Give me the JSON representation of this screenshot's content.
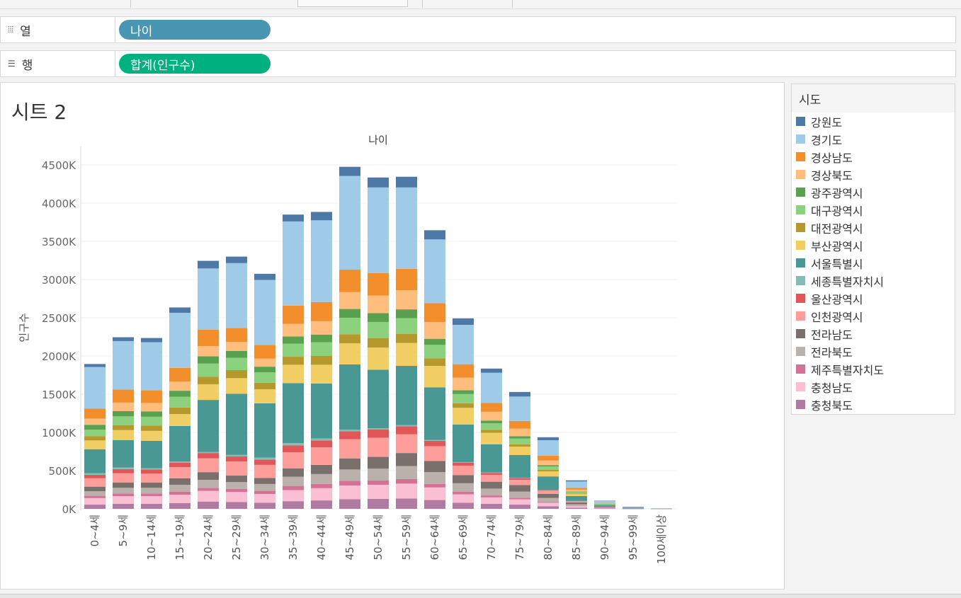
{
  "shelves": {
    "columns": {
      "label": "열",
      "icon": "⦙⦙⦙",
      "pill": "나이",
      "pill_color": "#4996b2"
    },
    "rows": {
      "label": "행",
      "icon": "☰",
      "pill": "합계(인구수)",
      "pill_color": "#00b180"
    }
  },
  "sheet": {
    "title": "시트 2"
  },
  "legend": {
    "title": "시도",
    "items": [
      {
        "name": "강원도",
        "color": "#4e79a7"
      },
      {
        "name": "경기도",
        "color": "#a0cbe8"
      },
      {
        "name": "경상남도",
        "color": "#f28e2b"
      },
      {
        "name": "경상북도",
        "color": "#ffbe7d"
      },
      {
        "name": "광주광역시",
        "color": "#59a14f"
      },
      {
        "name": "대구광역시",
        "color": "#8cd17d"
      },
      {
        "name": "대전광역시",
        "color": "#b6992d"
      },
      {
        "name": "부산광역시",
        "color": "#f1ce63"
      },
      {
        "name": "서울특별시",
        "color": "#499894"
      },
      {
        "name": "세종특별자치시",
        "color": "#86bcb6"
      },
      {
        "name": "울산광역시",
        "color": "#e15759"
      },
      {
        "name": "인천광역시",
        "color": "#ff9d9a"
      },
      {
        "name": "전라남도",
        "color": "#79706e"
      },
      {
        "name": "전라북도",
        "color": "#bab0ac"
      },
      {
        "name": "제주특별자치도",
        "color": "#d37295"
      },
      {
        "name": "충청남도",
        "color": "#fabfd2"
      },
      {
        "name": "충청북도",
        "color": "#b07aa1"
      }
    ]
  },
  "chart_data": {
    "type": "bar",
    "stacked": true,
    "title": "나이",
    "xlabel": "",
    "ylabel": "인구수",
    "ylim": [
      0,
      4700000
    ],
    "yticks": [
      0,
      500000,
      1000000,
      1500000,
      2000000,
      2500000,
      3000000,
      3500000,
      4000000,
      4500000
    ],
    "ytick_labels": [
      "0K",
      "500K",
      "1000K",
      "1500K",
      "2000K",
      "2500K",
      "3000K",
      "3500K",
      "4000K",
      "4500K"
    ],
    "categories": [
      "0~4세",
      "5~9세",
      "10~14세",
      "15~19세",
      "20~24세",
      "25~29세",
      "30~34세",
      "35~39세",
      "40~44세",
      "45~49세",
      "50~54세",
      "55~59세",
      "60~64세",
      "65~69세",
      "70~74세",
      "75~79세",
      "80~84세",
      "85~89세",
      "90~94세",
      "95~99세",
      "100세이상"
    ],
    "series": [
      {
        "name": "충청북도",
        "values": [
          55000,
          65000,
          65000,
          75000,
          95000,
          90000,
          80000,
          100000,
          110000,
          125000,
          130000,
          135000,
          115000,
          80000,
          65000,
          55000,
          35000,
          15000,
          5000,
          1500,
          200
        ]
      },
      {
        "name": "충청남도",
        "values": [
          85000,
          100000,
          100000,
          110000,
          140000,
          130000,
          115000,
          145000,
          160000,
          180000,
          185000,
          195000,
          165000,
          110000,
          85000,
          70000,
          45000,
          20000,
          6000,
          2000,
          300
        ]
      },
      {
        "name": "제주특별자치도",
        "values": [
          30000,
          35000,
          35000,
          40000,
          40000,
          40000,
          40000,
          55000,
          55000,
          60000,
          55000,
          60000,
          45000,
          35000,
          25000,
          20000,
          12000,
          5000,
          2000,
          500,
          100
        ]
      },
      {
        "name": "전라북도",
        "values": [
          60000,
          75000,
          75000,
          90000,
          105000,
          90000,
          90000,
          120000,
          130000,
          150000,
          155000,
          170000,
          155000,
          110000,
          90000,
          80000,
          50000,
          20000,
          6000,
          1500,
          200
        ]
      },
      {
        "name": "전라남도",
        "values": [
          60000,
          70000,
          70000,
          85000,
          100000,
          85000,
          80000,
          110000,
          120000,
          145000,
          155000,
          170000,
          145000,
          105000,
          90000,
          85000,
          55000,
          23000,
          7000,
          2000,
          300
        ]
      },
      {
        "name": "인천광역시",
        "values": [
          110000,
          120000,
          115000,
          145000,
          180000,
          185000,
          170000,
          210000,
          230000,
          250000,
          250000,
          245000,
          195000,
          125000,
          90000,
          70000,
          40000,
          15000,
          4000,
          1000,
          100
        ]
      },
      {
        "name": "울산광역시",
        "values": [
          45000,
          55000,
          55000,
          60000,
          70000,
          65000,
          70000,
          90000,
          90000,
          105000,
          110000,
          105000,
          70000,
          40000,
          25000,
          20000,
          10000,
          4000,
          1000,
          300,
          50
        ]
      },
      {
        "name": "세종특별자치시",
        "values": [
          20000,
          20000,
          15000,
          15000,
          15000,
          20000,
          25000,
          30000,
          25000,
          20000,
          15000,
          15000,
          10000,
          7000,
          5000,
          4000,
          2000,
          1000,
          300,
          100,
          0
        ]
      },
      {
        "name": "서울특별시",
        "values": [
          315000,
          360000,
          360000,
          465000,
          680000,
          800000,
          710000,
          785000,
          720000,
          855000,
          765000,
          775000,
          690000,
          490000,
          370000,
          300000,
          175000,
          65000,
          18000,
          4000,
          300
        ]
      },
      {
        "name": "부산광역시",
        "values": [
          115000,
          130000,
          130000,
          155000,
          205000,
          205000,
          185000,
          240000,
          245000,
          275000,
          290000,
          300000,
          280000,
          220000,
          150000,
          110000,
          65000,
          25000,
          6000,
          1500,
          200
        ]
      },
      {
        "name": "대전광역시",
        "values": [
          55000,
          65000,
          70000,
          85000,
          100000,
          105000,
          85000,
          105000,
          115000,
          120000,
          125000,
          120000,
          100000,
          60000,
          40000,
          30000,
          20000,
          8000,
          2000,
          500,
          100
        ]
      },
      {
        "name": "대구광역시",
        "values": [
          85000,
          115000,
          115000,
          140000,
          170000,
          160000,
          135000,
          170000,
          180000,
          215000,
          210000,
          205000,
          175000,
          120000,
          85000,
          75000,
          45000,
          18000,
          5000,
          1000,
          100
        ]
      },
      {
        "name": "광주광역시",
        "values": [
          65000,
          70000,
          70000,
          80000,
          95000,
          90000,
          75000,
          95000,
          100000,
          115000,
          115000,
          115000,
          80000,
          50000,
          35000,
          30000,
          18000,
          7000,
          2000,
          500,
          100
        ]
      },
      {
        "name": "경상북도",
        "values": [
          80000,
          110000,
          110000,
          120000,
          135000,
          120000,
          105000,
          165000,
          175000,
          220000,
          230000,
          250000,
          220000,
          165000,
          115000,
          100000,
          60000,
          25000,
          7000,
          2000,
          300
        ]
      },
      {
        "name": "경상남도",
        "values": [
          130000,
          170000,
          165000,
          180000,
          215000,
          180000,
          180000,
          240000,
          250000,
          295000,
          295000,
          280000,
          245000,
          175000,
          115000,
          100000,
          65000,
          25000,
          6000,
          1500,
          200
        ]
      },
      {
        "name": "경기도",
        "values": [
          545000,
          635000,
          630000,
          720000,
          800000,
          850000,
          850000,
          1100000,
          1070000,
          1225000,
          1120000,
          1065000,
          835000,
          515000,
          395000,
          320000,
          200000,
          82000,
          25000,
          6000,
          600
        ]
      },
      {
        "name": "강원도",
        "values": [
          40000,
          50000,
          55000,
          70000,
          100000,
          85000,
          80000,
          90000,
          110000,
          120000,
          130000,
          140000,
          120000,
          85000,
          55000,
          60000,
          40000,
          15000,
          4000,
          1000,
          200
        ]
      }
    ]
  }
}
